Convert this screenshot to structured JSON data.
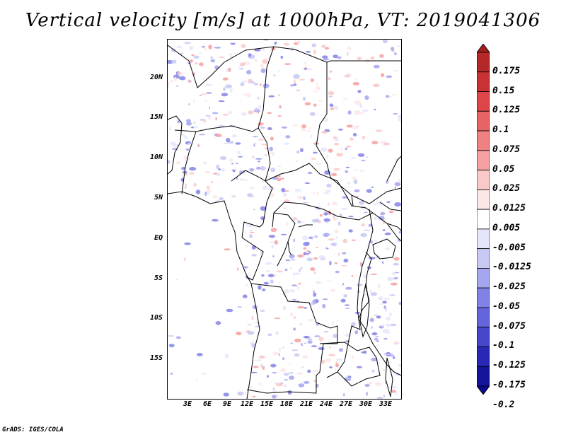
{
  "title": "Vertical velocity [m/s] at 1000hPa, VT: 2019041306",
  "credit": "GrADS: IGES/COLA",
  "lat_labels": [
    "20N",
    "15N",
    "10N",
    "5N",
    "EQ",
    "5S",
    "10S",
    "15S"
  ],
  "lon_labels": [
    "3E",
    "6E",
    "9E",
    "12E",
    "15E",
    "18E",
    "21E",
    "24E",
    "27E",
    "30E",
    "33E"
  ],
  "colorbar": {
    "labels": [
      "0.175",
      "0.15",
      "0.125",
      "0.1",
      "0.075",
      "0.05",
      "0.025",
      "0.0125",
      "0.005",
      "-0.005",
      "-0.0125",
      "-0.025",
      "-0.05",
      "-0.075",
      "-0.1",
      "-0.125",
      "-0.175",
      "-0.2"
    ],
    "colors": [
      "#a01e1e",
      "#b42828",
      "#c83232",
      "#dc4646",
      "#e66464",
      "#ee8282",
      "#f5a0a0",
      "#fac8c8",
      "#fde6e6",
      "#ffffff",
      "#e6e6fa",
      "#c8c8f5",
      "#a5a5f0",
      "#8282e6",
      "#6464dc",
      "#4646c8",
      "#2828b4",
      "#14149b",
      "#0a0a8c"
    ]
  }
}
